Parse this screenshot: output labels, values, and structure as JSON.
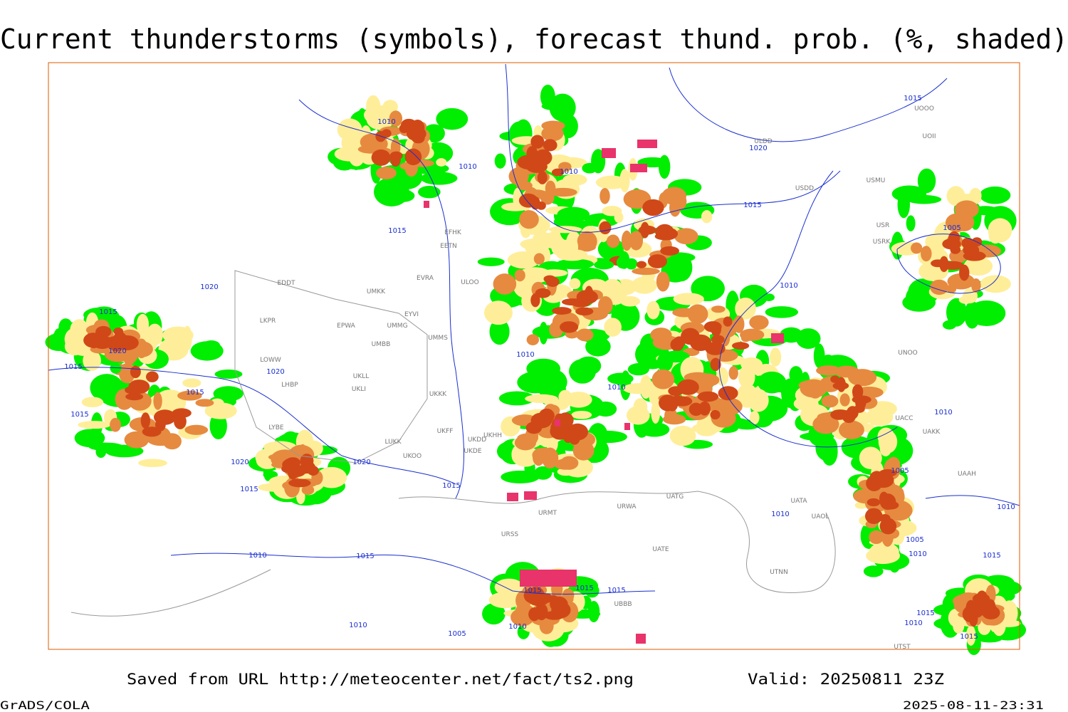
{
  "header": {
    "title": "Current thunderstorms (symbols), forecast thund. prob. (%, shaded)"
  },
  "footer": {
    "source": "Saved from URL http://meteocenter.net/fact/ts2.png",
    "valid": "Valid: 20250811 23Z",
    "software": "GrADS/COLA",
    "timestamp": "2025-08-11-23:31"
  },
  "isobar_labels": [
    "1010",
    "1010",
    "1010",
    "1020",
    "1015",
    "1015",
    "1015",
    "1005",
    "1020",
    "1015",
    "1010",
    "1020",
    "1015",
    "1020",
    "1010",
    "1015",
    "1010",
    "1015",
    "1010",
    "1020",
    "1020",
    "1005",
    "1015",
    "1015",
    "1010",
    "1010",
    "1005",
    "1010",
    "1015",
    "1010",
    "1015",
    "1015",
    "1015",
    "1015",
    "1015",
    "1010",
    "1005",
    "1010",
    "1010",
    "1015"
  ],
  "stations": [
    "ULDD",
    "UOOO",
    "UOII",
    "USMU",
    "USDD",
    "USR",
    "USRK",
    "EFHK",
    "EETN",
    "EVRA",
    "ULOO",
    "EDDT",
    "UMKK",
    "EYVI",
    "LKPR",
    "EPWA",
    "UMMG",
    "UMMS",
    "UMBB",
    "LOWW",
    "LHBP",
    "UKLL",
    "UKLI",
    "UKKK",
    "LYBE",
    "LUKK",
    "UKOO",
    "UKFF",
    "UKDD",
    "UKHH",
    "UKDE",
    "UATG",
    "URWA",
    "URMT",
    "URSS",
    "UATE",
    "UTNN",
    "UBBB",
    "UATA",
    "UAOL",
    "UACC",
    "UAKK",
    "UAAH",
    "UNOO",
    "UTST"
  ]
}
